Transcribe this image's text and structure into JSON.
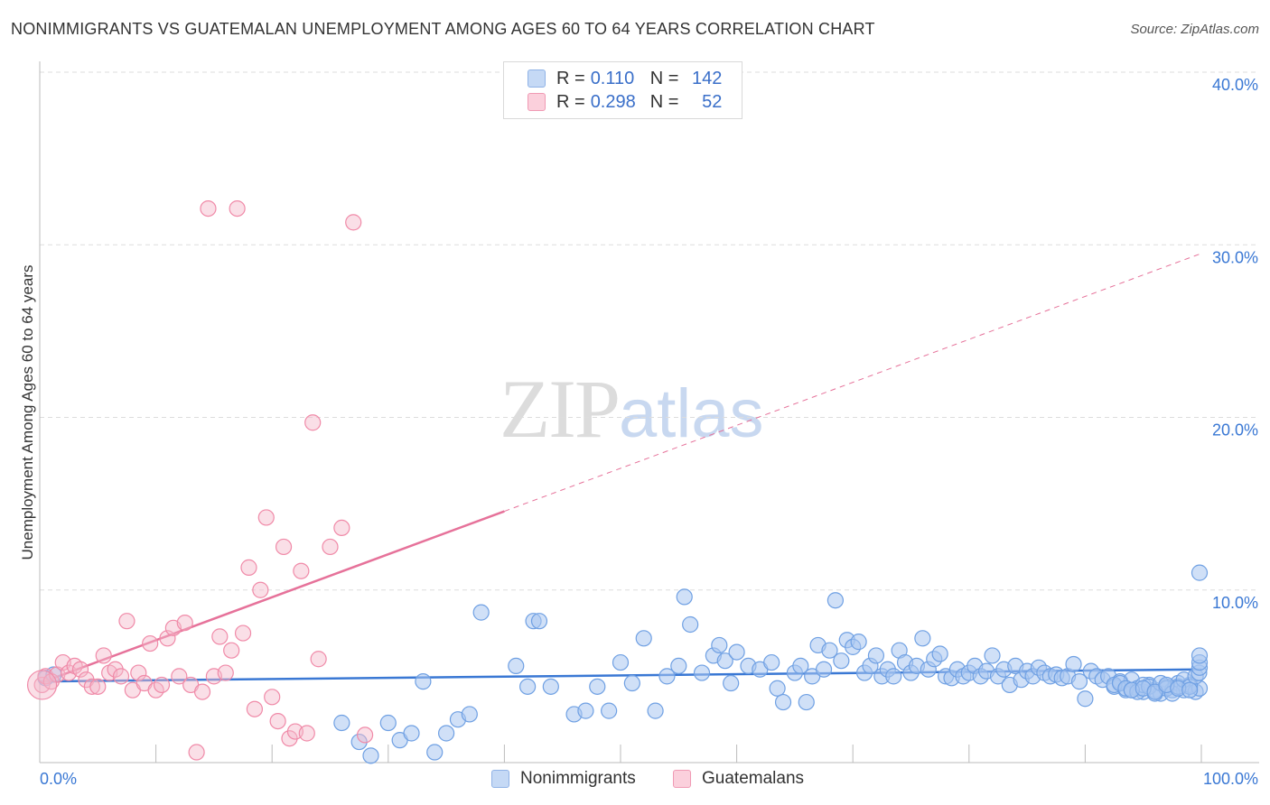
{
  "header": {
    "title": "NONIMMIGRANTS VS GUATEMALAN UNEMPLOYMENT AMONG AGES 60 TO 64 YEARS CORRELATION CHART",
    "source": "Source: ZipAtlas.com"
  },
  "watermark": {
    "zip": "ZIP",
    "atlas": "atlas"
  },
  "legend": {
    "rows": [
      {
        "r_label": "R =",
        "r_value": "0.110",
        "n_label": "N =",
        "n_value": "142",
        "color": "#a9c6f0"
      },
      {
        "r_label": "R =",
        "r_value": "0.298",
        "n_label": "N =",
        "n_value": "52",
        "color": "#f5b7c9"
      }
    ]
  },
  "bottom_legend": {
    "items": [
      {
        "label": "Nonimmigrants",
        "color": "#a9c6f0"
      },
      {
        "label": "Guatemalans",
        "color": "#f5b7c9"
      }
    ]
  },
  "chart_data": {
    "type": "scatter",
    "title": "NONIMMIGRANTS VS GUATEMALAN UNEMPLOYMENT AMONG AGES 60 TO 64 YEARS CORRELATION CHART",
    "xlabel": "",
    "ylabel": "Unemployment Among Ages 60 to 64 years",
    "xlim": [
      0,
      100
    ],
    "ylim": [
      0,
      40
    ],
    "x_tick_labels": [
      "0.0%",
      "100.0%"
    ],
    "y_tick_labels": [
      "10.0%",
      "20.0%",
      "30.0%",
      "40.0%"
    ],
    "y_ticks": [
      10,
      20,
      30,
      40
    ],
    "grid": "horizontal dashed",
    "legend_position": "top-center",
    "colors": {
      "nonimmigrants": "#6fa0e3",
      "guatemalans": "#f08aa8",
      "nonimmigrants_line": "#3a78d4",
      "guatemalans_line": "#e6729a"
    },
    "series": [
      {
        "name": "Nonimmigrants",
        "trend": {
          "x": [
            0,
            100
          ],
          "y": [
            4.7,
            5.4
          ],
          "dashed_from": null
        },
        "points": [
          [
            0.5,
            4.9
          ],
          [
            1.2,
            5.1
          ],
          [
            26,
            2.3
          ],
          [
            27.5,
            1.2
          ],
          [
            28.5,
            0.4
          ],
          [
            30,
            2.3
          ],
          [
            31,
            1.3
          ],
          [
            32,
            1.7
          ],
          [
            33,
            4.7
          ],
          [
            34,
            0.6
          ],
          [
            35,
            1.7
          ],
          [
            36,
            2.5
          ],
          [
            37,
            2.8
          ],
          [
            38,
            8.7
          ],
          [
            41,
            5.6
          ],
          [
            42,
            4.4
          ],
          [
            42.5,
            8.2
          ],
          [
            43,
            8.2
          ],
          [
            44,
            4.4
          ],
          [
            46,
            2.8
          ],
          [
            47,
            3.0
          ],
          [
            48,
            4.4
          ],
          [
            49,
            3.0
          ],
          [
            50,
            5.8
          ],
          [
            51,
            4.6
          ],
          [
            52,
            7.2
          ],
          [
            53,
            3.0
          ],
          [
            54,
            5.0
          ],
          [
            55,
            5.6
          ],
          [
            55.5,
            9.6
          ],
          [
            56,
            8.0
          ],
          [
            57,
            5.2
          ],
          [
            58,
            6.2
          ],
          [
            58.5,
            6.8
          ],
          [
            59,
            5.9
          ],
          [
            59.5,
            4.6
          ],
          [
            60,
            6.4
          ],
          [
            61,
            5.6
          ],
          [
            62,
            5.4
          ],
          [
            63,
            5.8
          ],
          [
            63.5,
            4.3
          ],
          [
            64,
            3.5
          ],
          [
            65,
            5.2
          ],
          [
            65.5,
            5.6
          ],
          [
            66,
            3.5
          ],
          [
            66.5,
            5.0
          ],
          [
            67,
            6.8
          ],
          [
            67.5,
            5.4
          ],
          [
            68,
            6.5
          ],
          [
            68.5,
            9.4
          ],
          [
            69,
            5.9
          ],
          [
            69.5,
            7.1
          ],
          [
            70,
            6.7
          ],
          [
            70.5,
            7.0
          ],
          [
            71,
            5.2
          ],
          [
            71.5,
            5.6
          ],
          [
            72,
            6.2
          ],
          [
            72.5,
            5.0
          ],
          [
            73,
            5.4
          ],
          [
            73.5,
            5.0
          ],
          [
            74,
            6.5
          ],
          [
            74.5,
            5.8
          ],
          [
            75,
            5.2
          ],
          [
            75.5,
            5.6
          ],
          [
            76,
            7.2
          ],
          [
            76.5,
            5.4
          ],
          [
            77,
            6.0
          ],
          [
            77.5,
            6.3
          ],
          [
            78,
            5.0
          ],
          [
            78.5,
            4.9
          ],
          [
            79,
            5.4
          ],
          [
            79.5,
            5.0
          ],
          [
            80,
            5.2
          ],
          [
            80.5,
            5.6
          ],
          [
            81,
            5.0
          ],
          [
            81.5,
            5.3
          ],
          [
            82,
            6.2
          ],
          [
            82.5,
            5.0
          ],
          [
            83,
            5.4
          ],
          [
            83.5,
            4.5
          ],
          [
            84,
            5.6
          ],
          [
            84.5,
            4.8
          ],
          [
            85,
            5.3
          ],
          [
            85.5,
            5.0
          ],
          [
            86,
            5.5
          ],
          [
            86.5,
            5.2
          ],
          [
            87,
            5.0
          ],
          [
            87.5,
            5.1
          ],
          [
            88,
            4.9
          ],
          [
            88.5,
            5.0
          ],
          [
            89,
            5.7
          ],
          [
            89.5,
            4.7
          ],
          [
            90,
            3.7
          ],
          [
            90.5,
            5.3
          ],
          [
            91,
            5.0
          ],
          [
            91.5,
            4.8
          ],
          [
            92,
            5.0
          ],
          [
            92.5,
            4.4
          ],
          [
            93,
            4.7
          ],
          [
            93.5,
            4.2
          ],
          [
            94,
            4.8
          ],
          [
            94.5,
            4.3
          ],
          [
            95,
            4.1
          ],
          [
            95.5,
            4.5
          ],
          [
            96,
            4.2
          ],
          [
            96.5,
            4.0
          ],
          [
            97,
            4.4
          ],
          [
            97.5,
            4.2
          ],
          [
            98,
            4.6
          ],
          [
            98.5,
            4.2
          ],
          [
            99,
            4.5
          ],
          [
            99.5,
            4.1
          ],
          [
            100,
            4.3
          ],
          [
            92.5,
            4.5
          ],
          [
            93,
            4.6
          ],
          [
            93.5,
            4.3
          ],
          [
            94,
            4.2
          ],
          [
            94.5,
            4.1
          ],
          [
            95,
            4.5
          ],
          [
            95.5,
            4.4
          ],
          [
            96,
            4.0
          ],
          [
            96.5,
            4.6
          ],
          [
            97,
            4.3
          ],
          [
            97.5,
            4.0
          ],
          [
            98,
            4.4
          ],
          [
            98.5,
            4.8
          ],
          [
            99,
            4.4
          ],
          [
            99.5,
            5.0
          ],
          [
            99.8,
            5.2
          ],
          [
            100.3,
            5.5
          ],
          [
            100.8,
            5.8
          ],
          [
            101.3,
            6.2
          ],
          [
            101.8,
            11.0
          ],
          [
            94,
            4.2
          ],
          [
            95,
            4.3
          ],
          [
            96,
            4.1
          ],
          [
            97,
            4.5
          ],
          [
            98,
            4.3
          ],
          [
            99,
            4.2
          ]
        ]
      },
      {
        "name": "Guatemalans",
        "trend": {
          "x": [
            0,
            100
          ],
          "y": [
            4.6,
            29.5
          ],
          "dashed_from": 40
        },
        "points": [
          [
            0.2,
            4.5
          ],
          [
            0.5,
            5.0
          ],
          [
            1,
            4.7
          ],
          [
            1.5,
            5.1
          ],
          [
            2,
            5.8
          ],
          [
            2.5,
            5.2
          ],
          [
            3,
            5.6
          ],
          [
            3.5,
            5.4
          ],
          [
            4,
            4.8
          ],
          [
            4.5,
            4.4
          ],
          [
            5,
            4.4
          ],
          [
            5.5,
            6.2
          ],
          [
            6,
            5.2
          ],
          [
            6.5,
            5.4
          ],
          [
            7,
            5.0
          ],
          [
            7.5,
            8.2
          ],
          [
            8,
            4.2
          ],
          [
            8.5,
            5.2
          ],
          [
            9,
            4.6
          ],
          [
            9.5,
            6.9
          ],
          [
            10,
            4.2
          ],
          [
            10.5,
            4.5
          ],
          [
            11,
            7.2
          ],
          [
            11.5,
            7.8
          ],
          [
            12,
            5.0
          ],
          [
            12.5,
            8.1
          ],
          [
            13,
            4.5
          ],
          [
            13.5,
            0.6
          ],
          [
            14,
            4.1
          ],
          [
            14.5,
            32.1
          ],
          [
            15,
            5.0
          ],
          [
            15.5,
            7.3
          ],
          [
            16,
            5.2
          ],
          [
            16.5,
            6.5
          ],
          [
            17,
            32.1
          ],
          [
            17.5,
            7.5
          ],
          [
            18,
            11.3
          ],
          [
            18.5,
            3.1
          ],
          [
            19,
            10.0
          ],
          [
            19.5,
            14.2
          ],
          [
            20,
            3.8
          ],
          [
            20.5,
            2.4
          ],
          [
            21,
            12.5
          ],
          [
            21.5,
            1.4
          ],
          [
            22,
            1.8
          ],
          [
            22.5,
            11.1
          ],
          [
            23,
            1.7
          ],
          [
            23.5,
            19.7
          ],
          [
            24,
            6.0
          ],
          [
            25,
            12.5
          ],
          [
            26,
            13.6
          ],
          [
            27,
            31.3
          ],
          [
            28,
            1.6
          ]
        ]
      }
    ]
  }
}
